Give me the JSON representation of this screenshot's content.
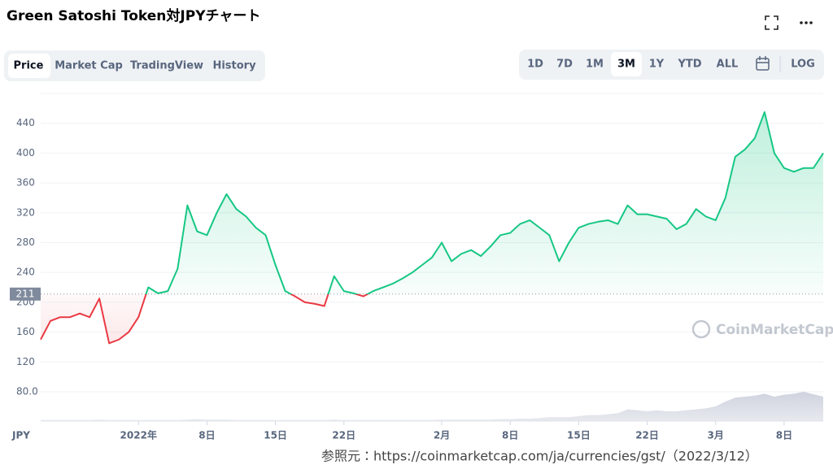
{
  "header": {
    "title": "Green Satoshi Token対JPYチャート"
  },
  "tabs": [
    "Price",
    "Market Cap",
    "TradingView",
    "History"
  ],
  "ranges": [
    "1D",
    "7D",
    "1M",
    "3M",
    "1Y",
    "YTD",
    "ALL"
  ],
  "log_button": "LOG",
  "source_note": "参照元：https://coinmarketcap.com/ja/currencies/gst/（2022/3/12）",
  "chart_data": {
    "type": "line",
    "currency": "JPY",
    "watermark": "CoinMarketCap",
    "x": [
      "2021-12-22",
      "2021-12-23",
      "2021-12-24",
      "2021-12-25",
      "2021-12-26",
      "2021-12-27",
      "2021-12-28",
      "2021-12-29",
      "2021-12-30",
      "2021-12-31",
      "2022-01-01",
      "2022-01-02",
      "2022-01-03",
      "2022-01-04",
      "2022-01-05",
      "2022-01-06",
      "2022-01-07",
      "2022-01-08",
      "2022-01-09",
      "2022-01-10",
      "2022-01-11",
      "2022-01-12",
      "2022-01-13",
      "2022-01-14",
      "2022-01-15",
      "2022-01-16",
      "2022-01-17",
      "2022-01-18",
      "2022-01-19",
      "2022-01-20",
      "2022-01-21",
      "2022-01-22",
      "2022-01-23",
      "2022-01-24",
      "2022-01-25",
      "2022-01-26",
      "2022-01-27",
      "2022-01-28",
      "2022-01-29",
      "2022-01-30",
      "2022-01-31",
      "2022-02-01",
      "2022-02-02",
      "2022-02-03",
      "2022-02-04",
      "2022-02-05",
      "2022-02-06",
      "2022-02-07",
      "2022-02-08",
      "2022-02-09",
      "2022-02-10",
      "2022-02-11",
      "2022-02-12",
      "2022-02-13",
      "2022-02-14",
      "2022-02-15",
      "2022-02-16",
      "2022-02-17",
      "2022-02-18",
      "2022-02-19",
      "2022-02-20",
      "2022-02-21",
      "2022-02-22",
      "2022-02-23",
      "2022-02-24",
      "2022-02-25",
      "2022-02-26",
      "2022-02-27",
      "2022-02-28",
      "2022-03-01",
      "2022-03-02",
      "2022-03-03",
      "2022-03-04",
      "2022-03-05",
      "2022-03-06",
      "2022-03-07",
      "2022-03-08",
      "2022-03-09",
      "2022-03-10",
      "2022-03-11",
      "2022-03-12"
    ],
    "values": [
      150,
      175,
      180,
      180,
      185,
      180,
      205,
      145,
      150,
      160,
      180,
      220,
      212,
      215,
      245,
      330,
      295,
      290,
      320,
      345,
      325,
      315,
      300,
      290,
      250,
      215,
      208,
      200,
      198,
      195,
      235,
      215,
      212,
      208,
      215,
      220,
      225,
      232,
      240,
      250,
      260,
      280,
      255,
      265,
      270,
      262,
      275,
      290,
      293,
      305,
      310,
      300,
      290,
      255,
      280,
      300,
      305,
      308,
      310,
      305,
      330,
      318,
      318,
      315,
      312,
      298,
      305,
      325,
      315,
      310,
      340,
      395,
      405,
      420,
      455,
      400,
      380,
      375,
      380,
      380,
      400
    ],
    "volume": {
      "color": "#cfd3de",
      "ylim": [
        0,
        100
      ],
      "values": [
        2,
        2,
        2,
        2,
        2,
        2,
        3,
        2,
        2,
        2,
        2,
        2,
        2,
        2,
        2,
        3,
        4,
        3,
        3,
        3,
        2,
        2,
        2,
        2,
        2,
        2,
        2,
        2,
        2,
        2,
        3,
        2,
        2,
        2,
        2,
        2,
        2,
        2,
        2,
        2,
        2,
        3,
        3,
        3,
        3,
        3,
        3,
        4,
        4,
        5,
        5,
        6,
        8,
        8,
        8,
        10,
        12,
        12,
        14,
        16,
        24,
        22,
        20,
        22,
        20,
        20,
        22,
        24,
        26,
        30,
        40,
        48,
        50,
        52,
        56,
        50,
        54,
        56,
        60,
        55,
        50
      ]
    },
    "baseline": 211,
    "up_color": "#16c784",
    "down_color": "#ea3943",
    "xlim": [
      "2021-12-22",
      "2022-03-12"
    ],
    "ylim": [
      44,
      480
    ],
    "yticks": [
      {
        "value": 80,
        "label": "80.0"
      },
      120,
      160,
      200,
      240,
      280,
      320,
      360,
      400,
      440
    ],
    "xticks": [
      {
        "value": "2022-01-01",
        "label": "2022年"
      },
      {
        "value": "2022-01-08",
        "label": "8日"
      },
      {
        "value": "2022-01-15",
        "label": "15日"
      },
      {
        "value": "2022-01-22",
        "label": "22日"
      },
      {
        "value": "2022-02-01",
        "label": "2月"
      },
      {
        "value": "2022-02-08",
        "label": "8日"
      },
      {
        "value": "2022-02-15",
        "label": "15日"
      },
      {
        "value": "2022-02-22",
        "label": "22日"
      },
      {
        "value": "2022-03-01",
        "label": "3月"
      },
      {
        "value": "2022-03-08",
        "label": "8日"
      }
    ],
    "grid": true
  }
}
